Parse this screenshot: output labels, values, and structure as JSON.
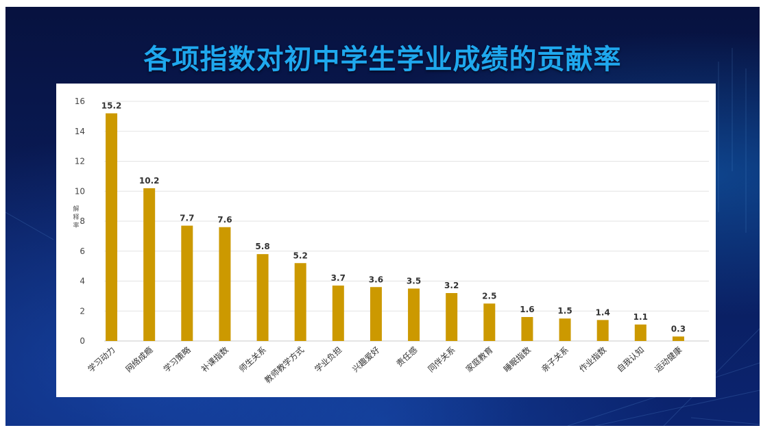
{
  "slide": {
    "title": "各项指数对初中学生学业成绩的贡献率"
  },
  "colors": {
    "bar": "#CC9900",
    "title": "#1FA8EE",
    "background": "#0A1D5C"
  },
  "chart_data": {
    "type": "bar",
    "title": "",
    "xlabel": "",
    "ylabel": "解释率",
    "ylim": [
      0,
      16
    ],
    "yticks": [
      0,
      2,
      4,
      6,
      8,
      10,
      12,
      14,
      16
    ],
    "grid": true,
    "legend": "none",
    "categories": [
      "学习动力",
      "网络成瘾",
      "学习策略",
      "补课指数",
      "师生关系",
      "教师教学方式",
      "学业负担",
      "兴趣爱好",
      "责任感",
      "同伴关系",
      "家庭教育",
      "睡眠指数",
      "亲子关系",
      "作业指数",
      "自我认知",
      "运动健康"
    ],
    "values": [
      15.2,
      10.2,
      7.7,
      7.6,
      5.8,
      5.2,
      3.7,
      3.6,
      3.5,
      3.2,
      2.5,
      1.6,
      1.5,
      1.4,
      1.1,
      0.3
    ],
    "data_labels": [
      "15.2",
      "10.2",
      "7.7",
      "7.6",
      "5.8",
      "5.2",
      "3.7",
      "3.6",
      "3.5",
      "3.2",
      "2.5",
      "1.6",
      "1.5",
      "1.4",
      "1.1",
      "0.3"
    ]
  }
}
